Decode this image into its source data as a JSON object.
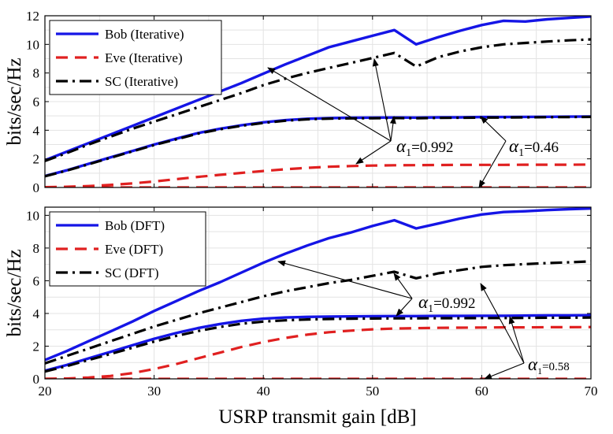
{
  "chart_data": {
    "x_axis_title": "USRP transmit gain [dB]",
    "y_axis_title": "bits/sec/Hz",
    "xlim": [
      20,
      70
    ],
    "x_ticks": [
      20,
      30,
      40,
      50,
      60,
      70
    ],
    "panels": [
      {
        "type": "line",
        "ylim": [
          0,
          12
        ],
        "y_ticks": [
          0,
          2,
          4,
          6,
          8,
          10,
          12
        ],
        "grid": true,
        "legend_position": "top-left",
        "legend": [
          {
            "label": "Bob (Iterative)",
            "color": "#1515e6",
            "dash": "solid"
          },
          {
            "label": "Eve (Iterative)",
            "color": "#e02020",
            "dash": "dashed"
          },
          {
            "label": "SC (Iterative)",
            "color": "#000000",
            "dash": "dash-dot"
          }
        ],
        "x": [
          20,
          22,
          24,
          26,
          28,
          30,
          32,
          34,
          36,
          38,
          40,
          42,
          44,
          46,
          48,
          50,
          52,
          54,
          56,
          58,
          60,
          62,
          64,
          66,
          68,
          70
        ],
        "series": [
          {
            "style": "bob",
            "values": [
              1.9,
              2.5,
              3.1,
              3.7,
              4.3,
              4.9,
              5.5,
              6.1,
              6.7,
              7.3,
              7.95,
              8.6,
              9.2,
              9.8,
              10.2,
              10.6,
              11.0,
              10.0,
              10.5,
              10.95,
              11.35,
              11.65,
              11.6,
              11.75,
              11.85,
              11.95
            ]
          },
          {
            "style": "sc",
            "values": [
              1.85,
              2.4,
              3.0,
              3.55,
              4.1,
              4.6,
              5.1,
              5.6,
              6.1,
              6.6,
              7.15,
              7.6,
              8.0,
              8.35,
              8.7,
              9.05,
              9.4,
              8.45,
              9.1,
              9.5,
              9.8,
              10.0,
              10.1,
              10.2,
              10.28,
              10.35
            ]
          },
          {
            "style": "bob",
            "values": [
              0.8,
              1.2,
              1.65,
              2.1,
              2.55,
              3.0,
              3.4,
              3.8,
              4.1,
              4.35,
              4.55,
              4.7,
              4.8,
              4.85,
              4.87,
              4.88,
              4.89,
              4.88,
              4.9,
              4.9,
              4.92,
              4.92,
              4.93,
              4.94,
              4.95,
              4.96
            ]
          },
          {
            "style": "sc",
            "values": [
              0.78,
              1.18,
              1.62,
              2.07,
              2.52,
              2.96,
              3.36,
              3.76,
              4.06,
              4.31,
              4.51,
              4.66,
              4.76,
              4.81,
              4.83,
              4.84,
              4.85,
              4.84,
              4.86,
              4.87,
              4.88,
              4.89,
              4.9,
              4.91,
              4.92,
              4.93
            ]
          },
          {
            "style": "eve",
            "values": [
              0.02,
              0.05,
              0.1,
              0.18,
              0.28,
              0.42,
              0.58,
              0.74,
              0.88,
              1.02,
              1.15,
              1.27,
              1.37,
              1.45,
              1.5,
              1.53,
              1.55,
              1.56,
              1.57,
              1.58,
              1.58,
              1.58,
              1.59,
              1.59,
              1.59,
              1.6
            ]
          },
          {
            "style": "eve",
            "values": [
              0.0,
              0.0,
              0.0,
              0.0,
              0.0,
              0.0,
              0.0,
              0.0,
              0.0,
              0.0,
              0.0,
              0.0,
              0.0,
              0.0,
              0.0,
              0.0,
              0.0,
              0.0,
              0.0,
              0.0,
              0.0,
              0.0,
              0.0,
              0.0,
              0.0,
              0.0
            ]
          }
        ],
        "annotations": [
          {
            "symbol": "α",
            "sub": "1",
            "value": "=0.992",
            "small": false
          },
          {
            "symbol": "α",
            "sub": "1",
            "value": "=0.46",
            "small": false
          }
        ]
      },
      {
        "type": "line",
        "ylim": [
          0,
          10.5
        ],
        "y_ticks": [
          0,
          2,
          4,
          6,
          8,
          10
        ],
        "grid": true,
        "legend_position": "top-left",
        "legend": [
          {
            "label": "Bob (DFT)",
            "color": "#1515e6",
            "dash": "solid"
          },
          {
            "label": "Eve (DFT)",
            "color": "#e02020",
            "dash": "dashed"
          },
          {
            "label": "SC (DFT)",
            "color": "#000000",
            "dash": "dash-dot"
          }
        ],
        "x": [
          20,
          22,
          24,
          26,
          28,
          30,
          32,
          34,
          36,
          38,
          40,
          42,
          44,
          46,
          48,
          50,
          52,
          54,
          56,
          58,
          60,
          62,
          64,
          66,
          68,
          70
        ],
        "series": [
          {
            "style": "bob",
            "values": [
              1.15,
              1.7,
              2.3,
              2.9,
              3.5,
              4.15,
              4.75,
              5.35,
              5.9,
              6.5,
              7.1,
              7.65,
              8.15,
              8.6,
              8.95,
              9.35,
              9.7,
              9.2,
              9.5,
              9.8,
              10.05,
              10.2,
              10.25,
              10.32,
              10.38,
              10.42
            ]
          },
          {
            "style": "sc",
            "values": [
              0.95,
              1.4,
              1.85,
              2.3,
              2.75,
              3.2,
              3.6,
              4.0,
              4.35,
              4.7,
              5.05,
              5.35,
              5.6,
              5.85,
              6.05,
              6.3,
              6.55,
              6.15,
              6.45,
              6.65,
              6.85,
              6.95,
              7.02,
              7.08,
              7.13,
              7.18
            ]
          },
          {
            "style": "bob",
            "values": [
              0.5,
              0.85,
              1.25,
              1.65,
              2.05,
              2.45,
              2.8,
              3.1,
              3.35,
              3.55,
              3.68,
              3.75,
              3.79,
              3.81,
              3.82,
              3.83,
              3.84,
              3.84,
              3.85,
              3.85,
              3.86,
              3.86,
              3.87,
              3.88,
              3.88,
              3.89
            ]
          },
          {
            "style": "sc",
            "values": [
              0.45,
              0.78,
              1.15,
              1.52,
              1.9,
              2.28,
              2.62,
              2.92,
              3.17,
              3.37,
              3.5,
              3.58,
              3.63,
              3.66,
              3.68,
              3.69,
              3.7,
              3.7,
              3.71,
              3.71,
              3.72,
              3.72,
              3.73,
              3.74,
              3.74,
              3.75
            ]
          },
          {
            "style": "eve",
            "values": [
              0.0,
              0.02,
              0.08,
              0.18,
              0.35,
              0.6,
              0.9,
              1.25,
              1.6,
              1.95,
              2.25,
              2.5,
              2.7,
              2.85,
              2.95,
              3.03,
              3.08,
              3.1,
              3.12,
              3.13,
              3.14,
              3.15,
              3.15,
              3.16,
              3.16,
              3.17
            ]
          },
          {
            "style": "eve",
            "values": [
              0.0,
              0.0,
              0.0,
              0.0,
              0.0,
              0.0,
              0.0,
              0.0,
              0.0,
              0.0,
              0.0,
              0.0,
              0.0,
              0.0,
              0.0,
              0.0,
              0.0,
              0.0,
              0.0,
              0.0,
              0.0,
              0.0,
              0.0,
              0.0,
              0.0,
              0.0
            ]
          }
        ],
        "annotations": [
          {
            "symbol": "α",
            "sub": "1",
            "value": "=0.992",
            "small": false
          },
          {
            "symbol": "α",
            "sub": "1",
            "value": "=0.58",
            "small": true
          }
        ]
      }
    ]
  }
}
